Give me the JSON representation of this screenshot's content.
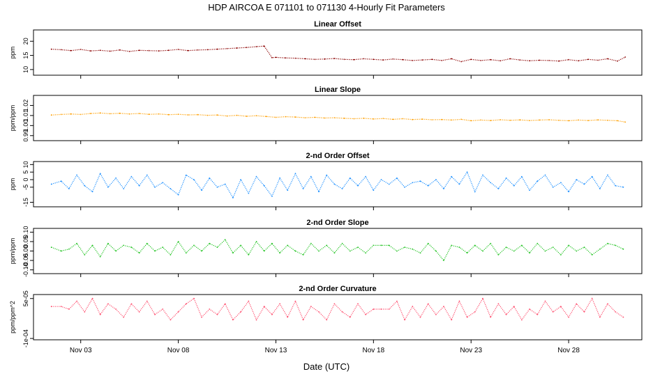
{
  "title": "HDP   AIRCOA E   071101 to 071130   4-Hourly Fit Parameters",
  "xlabel": "Date (UTC)",
  "x_ticks": [
    {
      "day": 3,
      "label": "Nov 03"
    },
    {
      "day": 8,
      "label": "Nov 08"
    },
    {
      "day": 13,
      "label": "Nov 13"
    },
    {
      "day": 18,
      "label": "Nov 18"
    },
    {
      "day": 23,
      "label": "Nov 23"
    },
    {
      "day": 28,
      "label": "Nov 28"
    }
  ],
  "chart_data": [
    {
      "type": "scatter",
      "title": "Linear Offset",
      "ylabel": "ppm",
      "color": "#8b0000",
      "ylim": [
        8,
        24
      ],
      "yticks": [
        10,
        15,
        20
      ],
      "ytick_labels": [
        "10",
        "15",
        "20"
      ],
      "xlim": [
        0.58,
        31.75
      ],
      "x": [
        1.5,
        2.0,
        2.5,
        3.0,
        3.5,
        4.0,
        4.5,
        5.0,
        5.5,
        6.0,
        6.5,
        7.0,
        7.5,
        8.0,
        8.5,
        9.0,
        9.5,
        10.0,
        10.5,
        11.0,
        11.5,
        12.0,
        12.4,
        12.8,
        13.0,
        13.5,
        14.0,
        14.5,
        15.0,
        15.5,
        16.0,
        16.5,
        17.0,
        17.5,
        18.0,
        18.5,
        19.0,
        19.5,
        20.0,
        20.5,
        21.0,
        21.5,
        22.0,
        22.5,
        23.0,
        23.5,
        24.0,
        24.5,
        25.0,
        25.5,
        26.0,
        26.5,
        27.0,
        27.5,
        28.0,
        28.5,
        29.0,
        29.5,
        30.0,
        30.5,
        30.9
      ],
      "y": [
        17.2,
        17.0,
        16.7,
        17.1,
        16.6,
        16.8,
        16.5,
        16.9,
        16.4,
        16.8,
        16.7,
        16.6,
        16.8,
        17.1,
        16.7,
        16.9,
        17.0,
        17.2,
        17.4,
        17.6,
        17.8,
        18.1,
        18.3,
        14.2,
        14.3,
        14.1,
        14.0,
        13.8,
        13.6,
        13.7,
        13.9,
        13.6,
        13.5,
        13.8,
        13.6,
        13.4,
        13.7,
        13.5,
        13.2,
        13.4,
        13.6,
        13.2,
        13.8,
        12.8,
        13.6,
        13.2,
        13.5,
        13.1,
        13.8,
        13.4,
        13.1,
        13.3,
        13.2,
        13.0,
        13.5,
        13.1,
        13.6,
        13.3,
        13.8,
        13.0,
        14.4
      ]
    },
    {
      "type": "scatter",
      "title": "Linear Slope",
      "ylabel": "ppm/ppm",
      "color": "#ff9f00",
      "ylim": [
        0.985,
        1.03
      ],
      "yticks": [
        0.99,
        1.0,
        1.01,
        1.02
      ],
      "ytick_labels": [
        "0.99",
        "1.00",
        "1.01",
        "1.02"
      ],
      "xlim": [
        0.58,
        31.75
      ],
      "x": [
        1.5,
        2.0,
        2.5,
        3.0,
        3.5,
        4.0,
        4.5,
        5.0,
        5.5,
        6.0,
        6.5,
        7.0,
        7.5,
        8.0,
        8.5,
        9.0,
        9.5,
        10.0,
        10.5,
        11.0,
        11.5,
        12.0,
        12.5,
        13.0,
        13.5,
        14.0,
        14.5,
        15.0,
        15.5,
        16.0,
        16.5,
        17.0,
        17.5,
        18.0,
        18.5,
        19.0,
        19.5,
        20.0,
        20.5,
        21.0,
        21.5,
        22.0,
        22.5,
        23.0,
        23.5,
        24.0,
        24.5,
        25.0,
        25.5,
        26.0,
        26.5,
        27.0,
        27.5,
        28.0,
        28.5,
        29.0,
        29.5,
        30.0,
        30.5,
        30.9
      ],
      "y": [
        1.0105,
        1.011,
        1.0115,
        1.011,
        1.012,
        1.0125,
        1.0118,
        1.0122,
        1.0115,
        1.012,
        1.0112,
        1.0115,
        1.0108,
        1.0112,
        1.0106,
        1.0108,
        1.0102,
        1.0105,
        1.0095,
        1.0102,
        1.0092,
        1.0098,
        1.009,
        1.0082,
        1.0088,
        1.0085,
        1.0078,
        1.0082,
        1.0075,
        1.0078,
        1.0072,
        1.0068,
        1.0072,
        1.0065,
        1.007,
        1.0062,
        1.0068,
        1.006,
        1.0064,
        1.0058,
        1.006,
        1.0055,
        1.0062,
        1.0048,
        1.0055,
        1.005,
        1.0058,
        1.0052,
        1.0056,
        1.005,
        1.0055,
        1.0058,
        1.0052,
        1.0048,
        1.0055,
        1.005,
        1.0056,
        1.0052,
        1.0048,
        1.0035
      ]
    },
    {
      "type": "scatter",
      "title": "2-nd Order Offset",
      "ylabel": "ppm",
      "color": "#1e90ff",
      "ylim": [
        -18,
        12
      ],
      "yticks": [
        -15,
        -5,
        0,
        5,
        10
      ],
      "ytick_labels": [
        "-15",
        "-5",
        "0",
        "5",
        "10"
      ],
      "xlim": [
        0.58,
        31.75
      ],
      "x": [
        1.5,
        2.0,
        2.4,
        2.8,
        3.2,
        3.6,
        4.0,
        4.4,
        4.8,
        5.2,
        5.6,
        6.0,
        6.4,
        6.8,
        7.2,
        7.6,
        8.0,
        8.4,
        8.8,
        9.2,
        9.6,
        10.0,
        10.4,
        10.8,
        11.2,
        11.6,
        12.0,
        12.4,
        12.8,
        13.2,
        13.6,
        14.0,
        14.4,
        14.8,
        15.2,
        15.6,
        16.0,
        16.4,
        16.8,
        17.2,
        17.6,
        18.0,
        18.4,
        18.8,
        19.2,
        19.6,
        20.0,
        20.4,
        20.8,
        21.2,
        21.6,
        22.0,
        22.4,
        22.8,
        23.2,
        23.6,
        24.0,
        24.4,
        24.8,
        25.2,
        25.6,
        26.0,
        26.4,
        26.8,
        27.2,
        27.6,
        28.0,
        28.4,
        28.8,
        29.2,
        29.6,
        30.0,
        30.4,
        30.8
      ],
      "y": [
        -3,
        -1,
        -6,
        3,
        -4,
        -8,
        4,
        -5,
        1,
        -6,
        2,
        -4,
        3,
        -5,
        -2,
        -6,
        -10,
        3,
        0,
        -7,
        1,
        -5,
        -3,
        -12,
        0,
        -9,
        2,
        -4,
        -11,
        1,
        -7,
        4,
        -6,
        2,
        -8,
        3,
        -3,
        -6,
        1,
        -4,
        2,
        -7,
        0,
        -3,
        1,
        -5,
        -2,
        -1,
        -4,
        0,
        -6,
        2,
        -3,
        5,
        -8,
        3,
        -2,
        -6,
        1,
        -4,
        2,
        -7,
        -1,
        3,
        -5,
        -2,
        -8,
        0,
        -3,
        2,
        -6,
        3,
        -4,
        -5
      ]
    },
    {
      "type": "scatter",
      "title": "2-nd Order Slope",
      "ylabel": "ppm/ppm",
      "color": "#22c322",
      "ylim": [
        -0.12,
        0.12
      ],
      "yticks": [
        -0.1,
        -0.05,
        0.0,
        0.05,
        0.1
      ],
      "ytick_labels": [
        "-0.10",
        "-0.05",
        "0.00",
        "0.05",
        "0.10"
      ],
      "xlim": [
        0.58,
        31.75
      ],
      "x": [
        1.5,
        2.0,
        2.4,
        2.8,
        3.2,
        3.6,
        4.0,
        4.4,
        4.8,
        5.2,
        5.6,
        6.0,
        6.4,
        6.8,
        7.2,
        7.6,
        8.0,
        8.4,
        8.8,
        9.2,
        9.6,
        10.0,
        10.4,
        10.8,
        11.2,
        11.6,
        12.0,
        12.4,
        12.8,
        13.2,
        13.6,
        14.0,
        14.4,
        14.8,
        15.2,
        15.6,
        16.0,
        16.4,
        16.8,
        17.2,
        17.6,
        18.0,
        18.4,
        18.8,
        19.2,
        19.6,
        20.0,
        20.4,
        20.8,
        21.2,
        21.6,
        22.0,
        22.4,
        22.8,
        23.2,
        23.6,
        24.0,
        24.4,
        24.8,
        25.2,
        25.6,
        26.0,
        26.4,
        26.8,
        27.2,
        27.6,
        28.0,
        28.4,
        28.8,
        29.2,
        29.6,
        30.0,
        30.4,
        30.8
      ],
      "y": [
        0.02,
        0.0,
        0.01,
        0.04,
        -0.02,
        0.03,
        -0.03,
        0.04,
        0.0,
        0.03,
        0.02,
        -0.01,
        0.04,
        0.0,
        0.02,
        -0.02,
        0.05,
        -0.01,
        0.03,
        0.0,
        0.04,
        0.02,
        0.06,
        -0.01,
        0.03,
        -0.02,
        0.05,
        0.0,
        0.04,
        -0.01,
        0.03,
        0.0,
        -0.02,
        0.04,
        0.0,
        0.03,
        -0.01,
        0.04,
        0.0,
        0.02,
        -0.01,
        0.03,
        0.03,
        0.03,
        0.0,
        0.02,
        0.01,
        -0.01,
        0.04,
        0.0,
        -0.05,
        0.03,
        0.02,
        -0.01,
        0.03,
        0.0,
        0.04,
        -0.02,
        0.02,
        0.0,
        0.03,
        -0.01,
        0.04,
        0.0,
        0.02,
        -0.02,
        0.03,
        0.0,
        0.02,
        -0.02,
        0.01,
        0.04,
        0.03,
        0.01
      ]
    },
    {
      "type": "scatter",
      "title": "2-nd Order Curvature",
      "ylabel": "ppm/ppm^2",
      "color": "#ff4d6d",
      "ylim": [
        -0.000105,
        6.5e-05
      ],
      "yticks": [
        -0.0001,
        5e-05
      ],
      "ytick_labels": [
        "-1e-04",
        "5e-05"
      ],
      "xlim": [
        0.58,
        31.75
      ],
      "x": [
        1.5,
        2.0,
        2.4,
        2.8,
        3.2,
        3.6,
        4.0,
        4.4,
        4.8,
        5.2,
        5.6,
        6.0,
        6.4,
        6.8,
        7.2,
        7.6,
        8.0,
        8.4,
        8.8,
        9.2,
        9.6,
        10.0,
        10.4,
        10.8,
        11.2,
        11.6,
        12.0,
        12.4,
        12.8,
        13.2,
        13.6,
        14.0,
        14.4,
        14.8,
        15.2,
        15.6,
        16.0,
        16.4,
        16.8,
        17.2,
        17.6,
        18.0,
        18.4,
        18.8,
        19.2,
        19.6,
        20.0,
        20.4,
        20.8,
        21.2,
        21.6,
        22.0,
        22.4,
        22.8,
        23.2,
        23.6,
        24.0,
        24.4,
        24.8,
        25.2,
        25.6,
        26.0,
        26.4,
        26.8,
        27.2,
        27.6,
        28.0,
        28.4,
        28.8,
        29.2,
        29.6,
        30.0,
        30.4,
        30.8
      ],
      "y": [
        2e-05,
        2e-05,
        1e-05,
        4e-05,
        0,
        5e-05,
        -1e-05,
        3e-05,
        1e-05,
        -2e-05,
        3e-05,
        0,
        4e-05,
        -1e-05,
        1e-05,
        -3e-05,
        0,
        3e-05,
        5e-05,
        -2e-05,
        1e-05,
        -1e-05,
        3e-05,
        -3e-05,
        0,
        4e-05,
        -3e-05,
        2e-05,
        -1e-05,
        3e-05,
        -2e-05,
        4e-05,
        -3e-05,
        2e-05,
        0,
        -3e-05,
        3e-05,
        0,
        -2e-05,
        3e-05,
        -1e-05,
        1e-05,
        1e-05,
        1e-05,
        4e-05,
        -3e-05,
        2e-05,
        -2e-05,
        3e-05,
        -1e-05,
        2e-05,
        -3e-05,
        4e-05,
        -2e-05,
        0,
        5e-05,
        -2e-05,
        3e-05,
        -1e-05,
        2e-05,
        -3e-05,
        1e-05,
        -1e-05,
        4e-05,
        0,
        2e-05,
        -2e-05,
        3e-05,
        0,
        5e-05,
        -2e-05,
        3e-05,
        0,
        -2e-05
      ]
    }
  ]
}
